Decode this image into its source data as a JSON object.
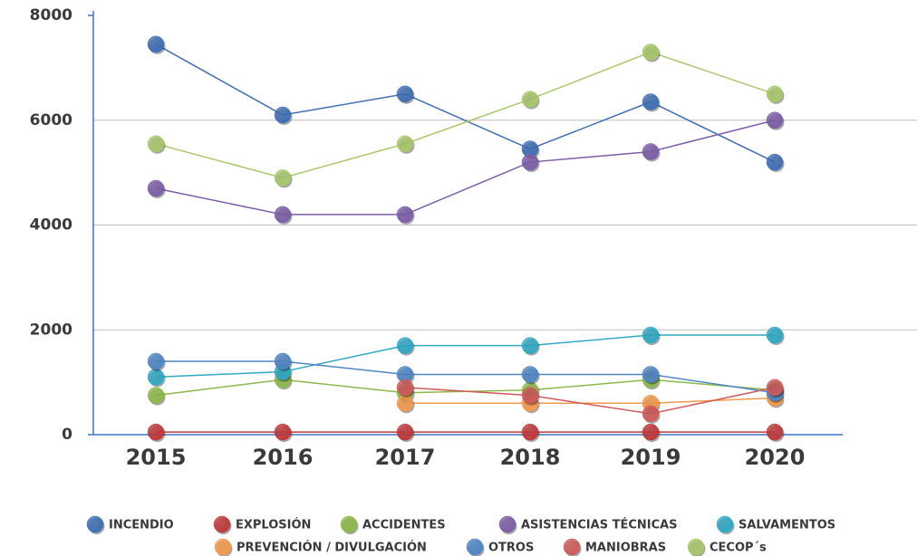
{
  "chart_data": {
    "type": "line",
    "x": [
      "2015",
      "2016",
      "2017",
      "2018",
      "2019",
      "2020"
    ],
    "ylim": [
      0,
      8000
    ],
    "yticks": [
      0,
      2000,
      4000,
      6000,
      8000
    ],
    "grid": true,
    "series": [
      {
        "name": "INCENDIO",
        "color": "#3f6fb5",
        "values": [
          7450,
          6100,
          6500,
          5450,
          6350,
          5200
        ]
      },
      {
        "name": "EXPLOSIÓN",
        "color": "#c0393b",
        "values": [
          50,
          50,
          50,
          50,
          50,
          50
        ]
      },
      {
        "name": "ACCIDENTES",
        "color": "#8db94a",
        "values": [
          750,
          1050,
          800,
          850,
          1050,
          850
        ]
      },
      {
        "name": "ASISTENCIAS TÉCNICAS",
        "color": "#7d5ea8",
        "values": [
          4700,
          4200,
          4200,
          5200,
          5400,
          6000
        ]
      },
      {
        "name": "SALVAMENTOS",
        "color": "#30a9c4",
        "values": [
          1100,
          1200,
          1700,
          1700,
          1900,
          1900
        ]
      },
      {
        "name": "PREVENCIÓN / DIVULGACIÓN",
        "color": "#f39a4d",
        "values": [
          null,
          null,
          600,
          600,
          600,
          700
        ]
      },
      {
        "name": "OTROS",
        "color": "#4f86c6",
        "values": [
          1400,
          1400,
          1150,
          1150,
          1150,
          800
        ]
      },
      {
        "name": "MANIOBRAS",
        "color": "#cf5b5b",
        "values": [
          null,
          null,
          900,
          750,
          400,
          900
        ]
      },
      {
        "name": "CECOP´s",
        "color": "#a8c86a",
        "values": [
          5550,
          4900,
          5550,
          6400,
          7300,
          6500
        ]
      }
    ]
  }
}
